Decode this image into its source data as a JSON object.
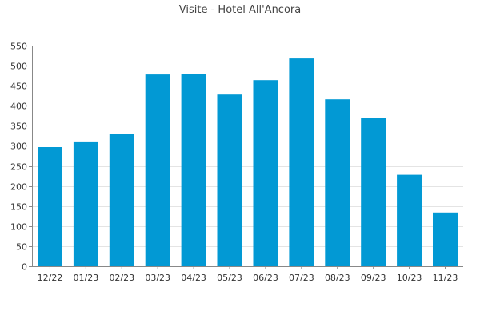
{
  "chart_data": {
    "type": "bar",
    "title": "Visite - Hotel All'Ancora",
    "xlabel": "",
    "ylabel": "",
    "categories": [
      "12/22",
      "01/23",
      "02/23",
      "03/23",
      "04/23",
      "05/23",
      "06/23",
      "07/23",
      "08/23",
      "09/23",
      "10/23",
      "11/23"
    ],
    "values": [
      297,
      311,
      329,
      478,
      480,
      428,
      464,
      518,
      416,
      369,
      228,
      134
    ],
    "ylim": [
      0,
      550
    ],
    "yticks": [
      "0",
      "50",
      "100",
      "150",
      "200",
      "250",
      "300",
      "350",
      "400",
      "450",
      "500",
      "550"
    ],
    "grid": true,
    "legend": "none",
    "colors": {
      "bar": "#0299d4",
      "grid": "#e4e4e4",
      "axis": "#888888",
      "title": "#444444",
      "tick_text": "#333333"
    }
  }
}
